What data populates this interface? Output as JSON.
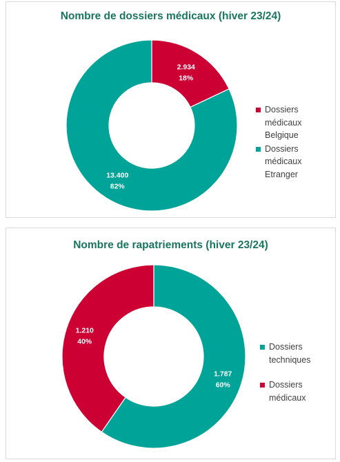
{
  "colors": {
    "title": "#1a7560",
    "teal": "#00a397",
    "red": "#cc0033"
  },
  "chart_data": [
    {
      "type": "pie",
      "title": "Nombre de dossiers médicaux (hiver 23/24)",
      "slices": [
        {
          "legend": "Dossiers médicaux Belgique",
          "value": 2934,
          "value_label": "2.934",
          "percent_label": "18%",
          "color": "#cc0033"
        },
        {
          "legend": "Dossiers médicaux Etranger",
          "value": 13400,
          "value_label": "13.400",
          "percent_label": "82%",
          "color": "#00a397"
        }
      ],
      "legend_position": "right"
    },
    {
      "type": "pie",
      "title": "Nombre de rapatriements (hiver 23/24)",
      "slices": [
        {
          "legend": "Dossiers techniques",
          "value": 1787,
          "value_label": "1.787",
          "percent_label": "60%",
          "color": "#00a397"
        },
        {
          "legend": "Dossiers médicaux",
          "value": 1210,
          "value_label": "1.210",
          "percent_label": "40%",
          "color": "#cc0033"
        }
      ],
      "legend_position": "right"
    }
  ]
}
